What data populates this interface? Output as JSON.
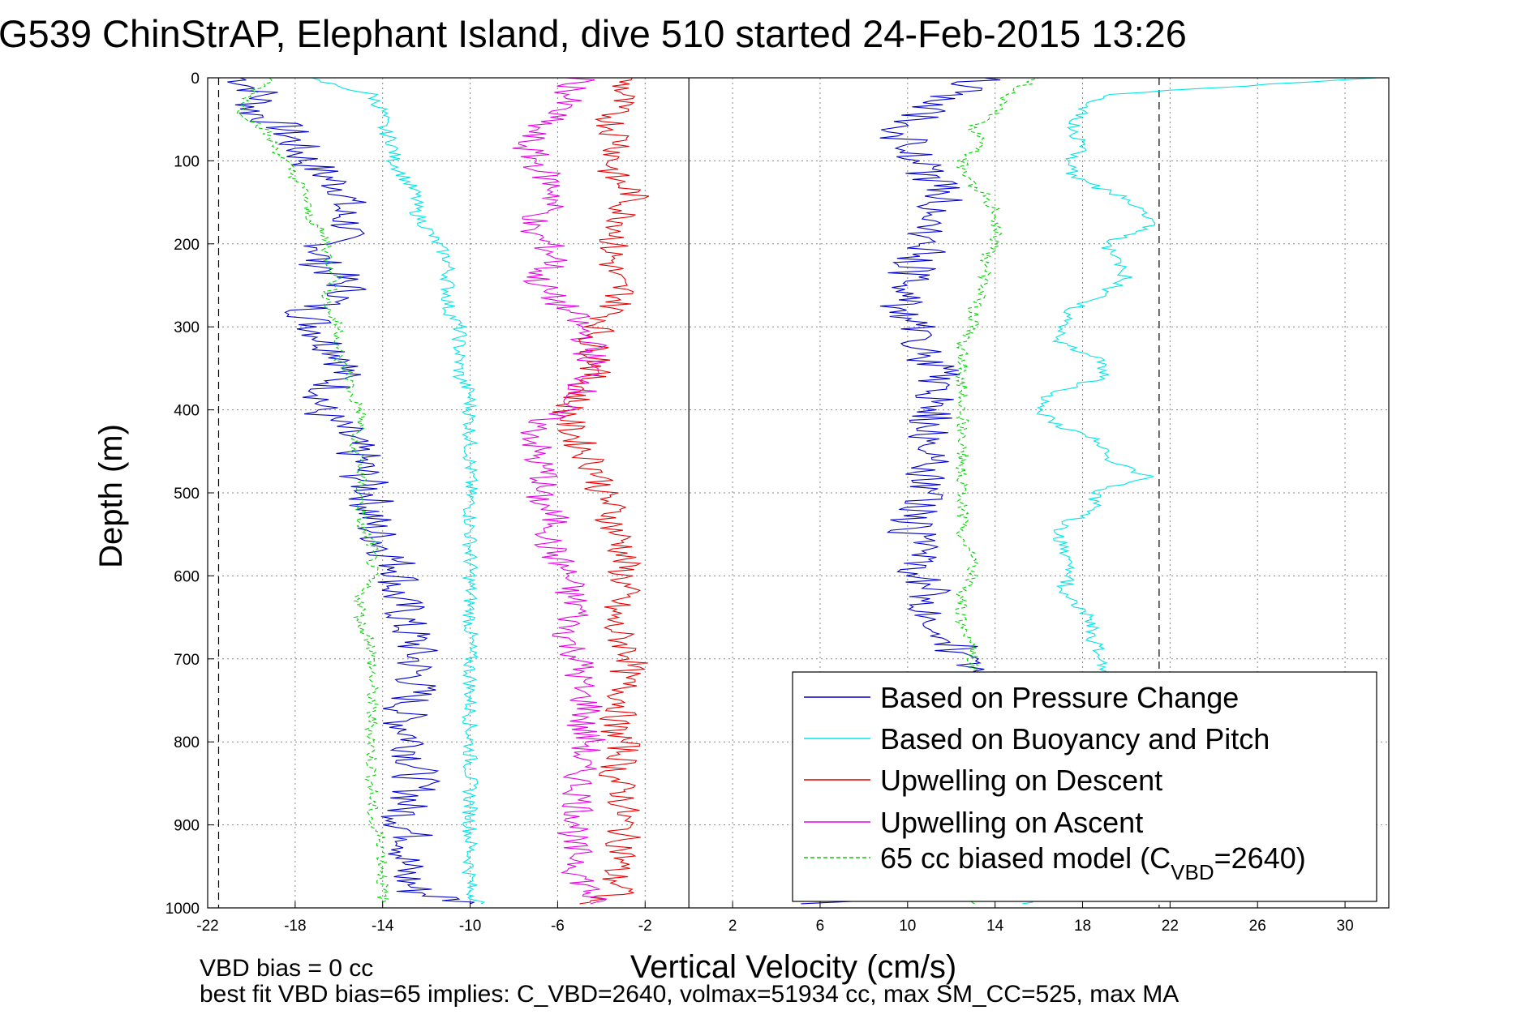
{
  "chart_data": {
    "type": "line",
    "title": "G539 ChinStrAP, Elephant Island, dive 510 started 24-Feb-2015 13:26",
    "xlabel": "Vertical Velocity (cm/s)",
    "ylabel": "Depth (m)",
    "xlim": [
      -22,
      32
    ],
    "ylim": [
      1000,
      0
    ],
    "y_reversed": true,
    "grid": true,
    "xticks": [
      -22,
      -18,
      -14,
      -10,
      -6,
      -2,
      2,
      6,
      10,
      14,
      18,
      22,
      26,
      30
    ],
    "yticks": [
      0,
      100,
      200,
      300,
      400,
      500,
      600,
      700,
      800,
      900,
      1000
    ],
    "reference_lines": [
      {
        "x": -21.5,
        "style": "dashed",
        "color": "#000000"
      },
      {
        "x": 0,
        "style": "solid",
        "color": "#000000"
      },
      {
        "x": 21.5,
        "style": "dashed",
        "color": "#000000"
      }
    ],
    "legend_position": "bottom-right",
    "series": [
      {
        "name": "Based on Pressure Change",
        "color": "#0000cc",
        "style": "solid",
        "depth": [
          0,
          20,
          40,
          60,
          80,
          100,
          120,
          140,
          160,
          180,
          200,
          220,
          240,
          260,
          280,
          300,
          320,
          340,
          360,
          380,
          400,
          420,
          440,
          460,
          480,
          500,
          520,
          540,
          560,
          580,
          600,
          620,
          640,
          660,
          680,
          700,
          720,
          740,
          760,
          780,
          800,
          820,
          840,
          860,
          880,
          900,
          920,
          940,
          960,
          980,
          995
        ],
        "velocity": [
          -20.5,
          -19.5,
          -20.0,
          -18.5,
          -18.0,
          -17.5,
          -16.5,
          -15.5,
          -16.0,
          -15.5,
          -16.5,
          -17.0,
          -16.0,
          -15.5,
          -17.5,
          -17.0,
          -16.5,
          -15.5,
          -16.0,
          -16.5,
          -17.0,
          -16.0,
          -15.5,
          -15.0,
          -15.0,
          -14.5,
          -14.5,
          -14.5,
          -14.0,
          -13.5,
          -13.0,
          -13.5,
          -13.0,
          -13.0,
          -12.5,
          -12.5,
          -12.5,
          -12.5,
          -13.0,
          -13.0,
          -12.5,
          -12.5,
          -12.5,
          -12.5,
          -13.0,
          -13.0,
          -12.5,
          -13.0,
          -13.0,
          -12.5,
          -10.0
        ],
        "ascent_depth": [
          995,
          980,
          960,
          940,
          920,
          900,
          880,
          860,
          840,
          820,
          800,
          780,
          760,
          740,
          720,
          700,
          680,
          660,
          640,
          620,
          600,
          580,
          560,
          540,
          520,
          500,
          480,
          460,
          440,
          420,
          400,
          380,
          360,
          340,
          320,
          300,
          280,
          260,
          240,
          220,
          200,
          180,
          160,
          140,
          120,
          100,
          80,
          60,
          40,
          20,
          0
        ],
        "ascent_velocity": [
          6.0,
          12.5,
          14.5,
          14.0,
          13.5,
          13.5,
          13.0,
          13.0,
          13.0,
          13.0,
          12.5,
          13.0,
          12.5,
          13.0,
          13.0,
          12.5,
          12.0,
          11.5,
          11.0,
          11.0,
          10.5,
          10.5,
          10.5,
          10.0,
          10.5,
          11.0,
          11.0,
          11.0,
          11.5,
          10.5,
          11.5,
          11.0,
          11.5,
          11.0,
          10.5,
          10.5,
          9.5,
          10.0,
          10.0,
          10.5,
          11.0,
          11.0,
          11.5,
          11.5,
          11.0,
          10.5,
          10.0,
          9.5,
          11.0,
          12.0,
          13.5
        ]
      },
      {
        "name": "Based on Buoyancy and Pitch",
        "color": "#00e5e5",
        "style": "solid",
        "depth": [
          0,
          20,
          40,
          60,
          80,
          100,
          120,
          140,
          160,
          180,
          200,
          220,
          240,
          260,
          280,
          300,
          320,
          340,
          360,
          380,
          400,
          420,
          440,
          460,
          480,
          500,
          520,
          540,
          560,
          580,
          600,
          620,
          640,
          660,
          680,
          700,
          720,
          740,
          760,
          780,
          800,
          820,
          840,
          860,
          880,
          900,
          920,
          940,
          960,
          980,
          995
        ],
        "velocity": [
          -17.5,
          -14.5,
          -14.0,
          -14.0,
          -13.5,
          -13.5,
          -13.0,
          -12.5,
          -12.5,
          -12.0,
          -11.5,
          -11.0,
          -11.0,
          -11.0,
          -11.0,
          -10.5,
          -10.5,
          -10.5,
          -10.5,
          -10.0,
          -10.0,
          -10.0,
          -10.0,
          -10.0,
          -10.0,
          -10.0,
          -10.0,
          -10.0,
          -10.0,
          -10.0,
          -10.0,
          -10.0,
          -10.0,
          -10.0,
          -10.0,
          -10.0,
          -10.0,
          -10.0,
          -10.0,
          -10.0,
          -10.0,
          -10.0,
          -10.0,
          -10.0,
          -10.0,
          -10.0,
          -10.0,
          -10.0,
          -10.0,
          -10.0,
          -9.5
        ],
        "ascent_depth": [
          995,
          980,
          960,
          940,
          920,
          900,
          880,
          860,
          840,
          820,
          800,
          780,
          760,
          740,
          720,
          700,
          680,
          660,
          640,
          620,
          600,
          580,
          560,
          540,
          520,
          500,
          480,
          460,
          440,
          420,
          400,
          380,
          360,
          340,
          320,
          300,
          280,
          260,
          240,
          220,
          200,
          180,
          160,
          140,
          120,
          100,
          80,
          60,
          40,
          20,
          0
        ],
        "ascent_velocity": [
          15.0,
          19.0,
          19.0,
          19.0,
          19.0,
          19.0,
          19.0,
          19.0,
          19.0,
          19.0,
          19.0,
          19.0,
          19.0,
          19.0,
          19.0,
          19.0,
          18.5,
          18.5,
          18.0,
          17.0,
          17.5,
          17.5,
          17.0,
          17.0,
          18.5,
          18.5,
          21.0,
          19.0,
          19.0,
          17.0,
          16.0,
          16.5,
          19.0,
          19.0,
          17.0,
          17.0,
          17.5,
          19.0,
          20.0,
          19.5,
          19.0,
          21.0,
          21.0,
          19.5,
          17.5,
          17.5,
          18.0,
          17.5,
          18.0,
          19.0,
          31.5
        ]
      },
      {
        "name": "Upwelling on Descent",
        "color": "#e60000",
        "style": "solid",
        "depth": [
          0,
          20,
          40,
          60,
          80,
          100,
          120,
          140,
          160,
          180,
          200,
          220,
          240,
          260,
          280,
          300,
          320,
          340,
          360,
          380,
          400,
          420,
          440,
          460,
          480,
          500,
          520,
          540,
          560,
          580,
          600,
          620,
          640,
          660,
          680,
          700,
          720,
          740,
          760,
          780,
          800,
          820,
          840,
          860,
          880,
          900,
          920,
          940,
          960,
          980,
          995
        ],
        "velocity": [
          -3.0,
          -3.0,
          -3.5,
          -3.5,
          -3.0,
          -3.5,
          -3.5,
          -2.5,
          -3.0,
          -3.0,
          -3.5,
          -3.5,
          -3.5,
          -3.0,
          -3.5,
          -4.0,
          -4.5,
          -4.0,
          -4.5,
          -5.0,
          -5.5,
          -5.5,
          -5.0,
          -4.5,
          -4.0,
          -4.0,
          -3.5,
          -3.5,
          -3.0,
          -3.0,
          -3.0,
          -3.0,
          -3.5,
          -3.5,
          -3.0,
          -2.5,
          -3.0,
          -3.0,
          -3.0,
          -3.5,
          -3.0,
          -3.0,
          -3.5,
          -3.0,
          -3.0,
          -3.0,
          -3.0,
          -3.0,
          -3.5,
          -3.0,
          -5.0
        ]
      },
      {
        "name": "Upwelling on Ascent",
        "color": "#e600e6",
        "style": "solid",
        "depth": [
          0,
          20,
          40,
          60,
          80,
          100,
          120,
          140,
          160,
          180,
          200,
          220,
          240,
          260,
          280,
          300,
          320,
          340,
          360,
          380,
          400,
          420,
          440,
          460,
          480,
          500,
          520,
          540,
          560,
          580,
          600,
          620,
          640,
          660,
          680,
          700,
          720,
          740,
          760,
          780,
          800,
          820,
          840,
          860,
          880,
          900,
          920,
          940,
          960,
          980,
          995
        ],
        "velocity": [
          -5.0,
          -5.5,
          -6.0,
          -7.0,
          -7.5,
          -7.0,
          -6.5,
          -6.0,
          -6.5,
          -7.5,
          -6.5,
          -6.0,
          -7.0,
          -6.5,
          -5.5,
          -5.0,
          -4.5,
          -4.5,
          -4.5,
          -5.0,
          -6.0,
          -7.0,
          -7.0,
          -7.0,
          -6.5,
          -7.0,
          -6.5,
          -6.0,
          -6.5,
          -6.0,
          -5.5,
          -5.5,
          -5.0,
          -5.5,
          -5.5,
          -5.0,
          -5.0,
          -5.0,
          -4.5,
          -5.0,
          -4.5,
          -5.0,
          -5.0,
          -5.0,
          -5.0,
          -5.0,
          -5.5,
          -5.0,
          -5.0,
          -4.5,
          -4.5
        ]
      },
      {
        "name": "65 cc biased model (C_VBD=2640)",
        "color": "#00d400",
        "style": "dashed",
        "depth": [
          0,
          20,
          40,
          60,
          80,
          100,
          120,
          140,
          160,
          180,
          200,
          220,
          240,
          260,
          280,
          300,
          320,
          340,
          360,
          380,
          400,
          420,
          440,
          460,
          480,
          500,
          520,
          540,
          560,
          580,
          600,
          620,
          640,
          660,
          680,
          700,
          720,
          740,
          760,
          780,
          800,
          820,
          840,
          860,
          880,
          900,
          920,
          940,
          960,
          980,
          995
        ],
        "velocity": [
          -19.0,
          -20.0,
          -20.5,
          -19.5,
          -19.0,
          -18.5,
          -18.0,
          -17.5,
          -17.5,
          -17.0,
          -16.5,
          -16.5,
          -16.0,
          -16.5,
          -16.5,
          -16.0,
          -16.0,
          -16.0,
          -15.5,
          -15.5,
          -15.0,
          -15.0,
          -15.5,
          -15.0,
          -15.0,
          -15.0,
          -15.0,
          -15.0,
          -14.5,
          -14.5,
          -14.5,
          -15.0,
          -15.0,
          -15.0,
          -14.5,
          -14.5,
          -14.5,
          -14.5,
          -14.5,
          -14.5,
          -14.5,
          -14.5,
          -14.5,
          -14.5,
          -14.5,
          -14.5,
          -14.0,
          -14.0,
          -14.0,
          -14.0,
          -14.0
        ],
        "ascent_depth": [
          995,
          980,
          960,
          940,
          920,
          900,
          880,
          860,
          840,
          820,
          800,
          780,
          760,
          740,
          720,
          700,
          680,
          660,
          640,
          620,
          600,
          580,
          560,
          540,
          520,
          500,
          480,
          460,
          440,
          420,
          400,
          380,
          360,
          340,
          320,
          300,
          280,
          260,
          240,
          220,
          200,
          180,
          160,
          140,
          120,
          100,
          80,
          60,
          40,
          20,
          0
        ],
        "ascent_velocity": [
          13.0,
          13.0,
          13.0,
          13.0,
          13.0,
          13.0,
          13.0,
          13.0,
          13.0,
          13.0,
          13.0,
          13.0,
          13.0,
          13.0,
          13.0,
          13.0,
          13.0,
          12.5,
          12.5,
          12.5,
          13.0,
          13.0,
          12.5,
          12.5,
          12.5,
          12.5,
          12.5,
          12.5,
          12.5,
          12.5,
          12.5,
          12.5,
          12.5,
          12.5,
          12.5,
          13.0,
          13.0,
          13.5,
          13.5,
          13.5,
          14.0,
          14.0,
          14.0,
          13.5,
          12.5,
          12.5,
          13.5,
          13.0,
          14.0,
          14.5,
          16.0
        ]
      }
    ],
    "legend": {
      "entries": [
        {
          "label": "Based on Pressure Change",
          "color": "#0000cc",
          "style": "solid"
        },
        {
          "label": "Based on Buoyancy and Pitch",
          "color": "#00e5e5",
          "style": "solid"
        },
        {
          "label": "Upwelling on Descent",
          "color": "#e60000",
          "style": "solid"
        },
        {
          "label": "Upwelling on Ascent",
          "color": "#e600e6",
          "style": "solid"
        },
        {
          "label_prefix": "65 cc biased model (C",
          "label_sub": "VBD",
          "label_suffix": "=2640)",
          "color": "#00d400",
          "style": "dashed"
        }
      ]
    },
    "annotations": {
      "vbd_bias": "VBD bias = 0 cc",
      "best_fit": "best fit VBD bias=65 implies: C_VBD=2640, volmax=51934 cc, max SM_CC=525, max MA"
    }
  }
}
